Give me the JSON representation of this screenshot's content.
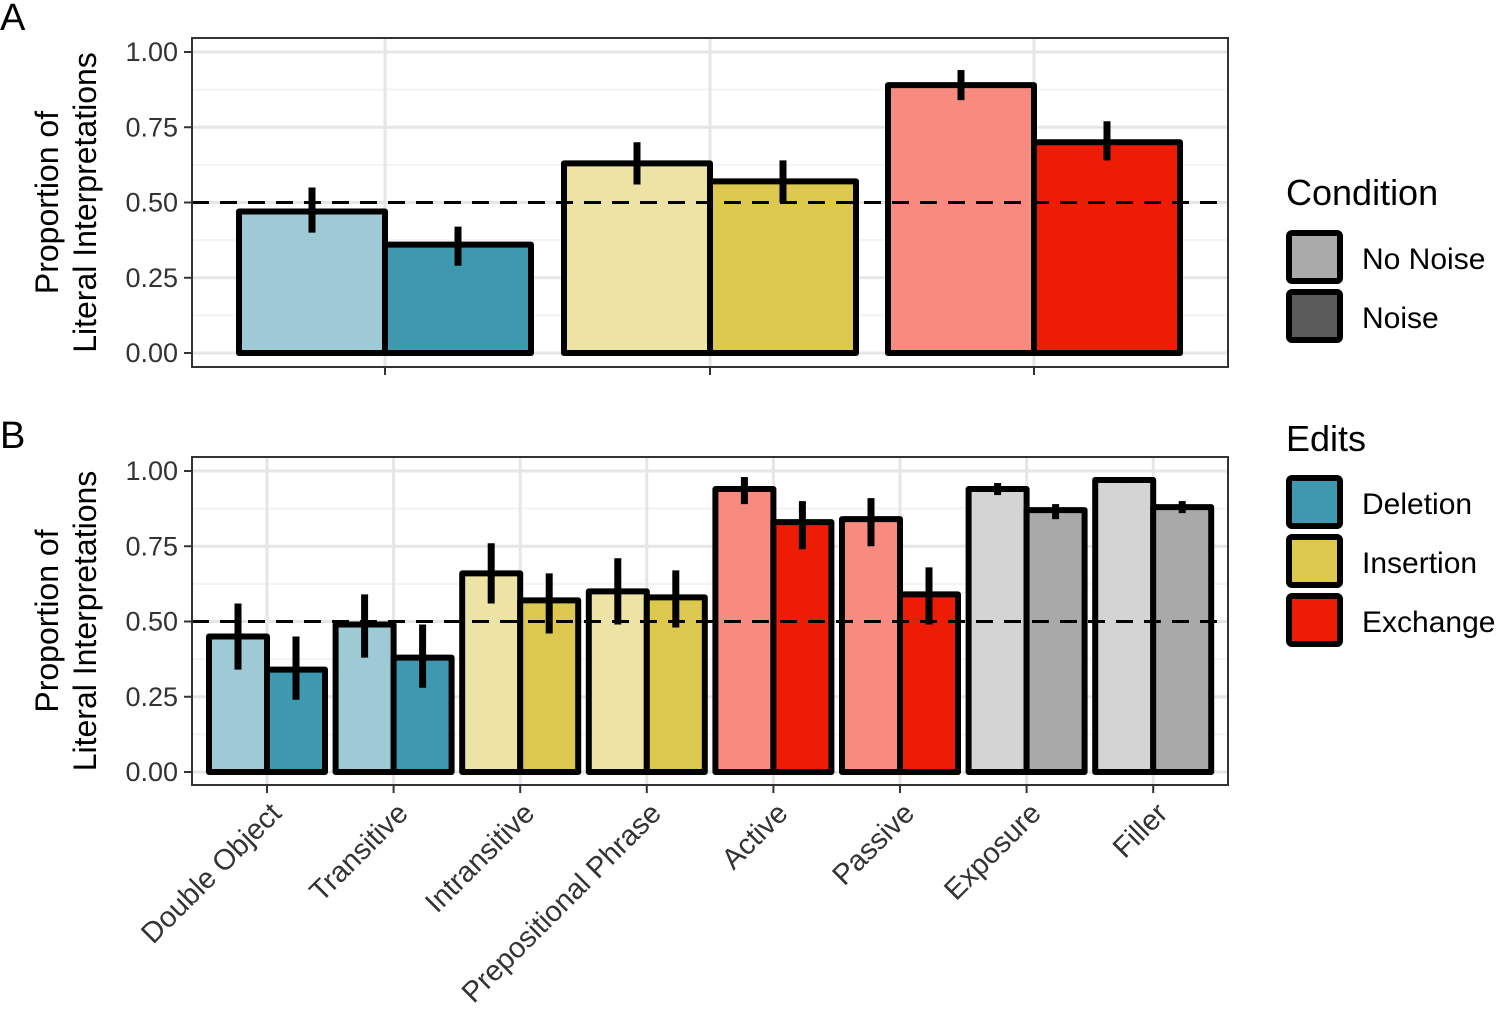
{
  "chart_data": [
    {
      "panel": "A",
      "type": "bar",
      "ylabel": [
        "Proportion of",
        "Literal Interpretations"
      ],
      "ylim": [
        0,
        1
      ],
      "yticks": [
        "0.00",
        "0.25",
        "0.50",
        "0.75",
        "1.00"
      ],
      "reference_line": 0.5,
      "grid": true,
      "legend": {
        "title": "Condition",
        "position": "right",
        "entries": [
          {
            "label": "No Noise",
            "color": "#aaaaaa"
          },
          {
            "label": "Noise",
            "color": "#5a5a5a"
          }
        ]
      },
      "groups": [
        "Deletion",
        "Insertion",
        "Exchange"
      ],
      "series": [
        {
          "name": "No Noise",
          "values": [
            0.47,
            0.63,
            0.89
          ],
          "error_low": [
            0.4,
            0.56,
            0.84
          ],
          "error_high": [
            0.55,
            0.7,
            0.94
          ],
          "colors": [
            "#9ecad6",
            "#ede3a4",
            "#f78b80"
          ]
        },
        {
          "name": "Noise",
          "values": [
            0.36,
            0.57,
            0.7
          ],
          "error_low": [
            0.29,
            0.5,
            0.64
          ],
          "error_high": [
            0.42,
            0.64,
            0.77
          ],
          "colors": [
            "#3d98b0",
            "#dcc84e",
            "#ee1c05"
          ]
        }
      ]
    },
    {
      "panel": "B",
      "type": "bar",
      "ylabel": [
        "Proportion of",
        "Literal Interpretations"
      ],
      "ylim": [
        0,
        1
      ],
      "yticks": [
        "0.00",
        "0.25",
        "0.50",
        "0.75",
        "1.00"
      ],
      "reference_line": 0.5,
      "grid": true,
      "legend": {
        "title": "Edits",
        "position": "right",
        "entries": [
          {
            "label": "Deletion",
            "color": "#3d98b0"
          },
          {
            "label": "Insertion",
            "color": "#dcc84e"
          },
          {
            "label": "Exchange",
            "color": "#ee1c05"
          }
        ]
      },
      "categories": [
        "Double Object",
        "Transitive",
        "Intransitive",
        "Prepositional Phrase",
        "Active",
        "Passive",
        "Exposure",
        "Filler"
      ],
      "series": [
        {
          "name": "No Noise",
          "values": [
            0.45,
            0.49,
            0.66,
            0.6,
            0.94,
            0.84,
            0.94,
            0.97
          ],
          "error_low": [
            0.34,
            0.38,
            0.56,
            0.49,
            0.89,
            0.75,
            0.92,
            0.96
          ],
          "error_high": [
            0.56,
            0.59,
            0.76,
            0.71,
            0.98,
            0.91,
            0.96,
            0.98
          ],
          "colors": [
            "#9ecad6",
            "#9ecad6",
            "#ede3a4",
            "#ede3a4",
            "#f78b80",
            "#f78b80",
            "#d4d4d4",
            "#d4d4d4"
          ]
        },
        {
          "name": "Noise",
          "values": [
            0.34,
            0.38,
            0.57,
            0.58,
            0.83,
            0.59,
            0.87,
            0.88
          ],
          "error_low": [
            0.24,
            0.28,
            0.46,
            0.48,
            0.74,
            0.49,
            0.84,
            0.86
          ],
          "error_high": [
            0.45,
            0.49,
            0.66,
            0.67,
            0.9,
            0.68,
            0.89,
            0.9
          ],
          "colors": [
            "#3d98b0",
            "#3d98b0",
            "#dcc84e",
            "#dcc84e",
            "#ee1c05",
            "#ee1c05",
            "#a9a9a9",
            "#a9a9a9"
          ]
        }
      ]
    }
  ]
}
